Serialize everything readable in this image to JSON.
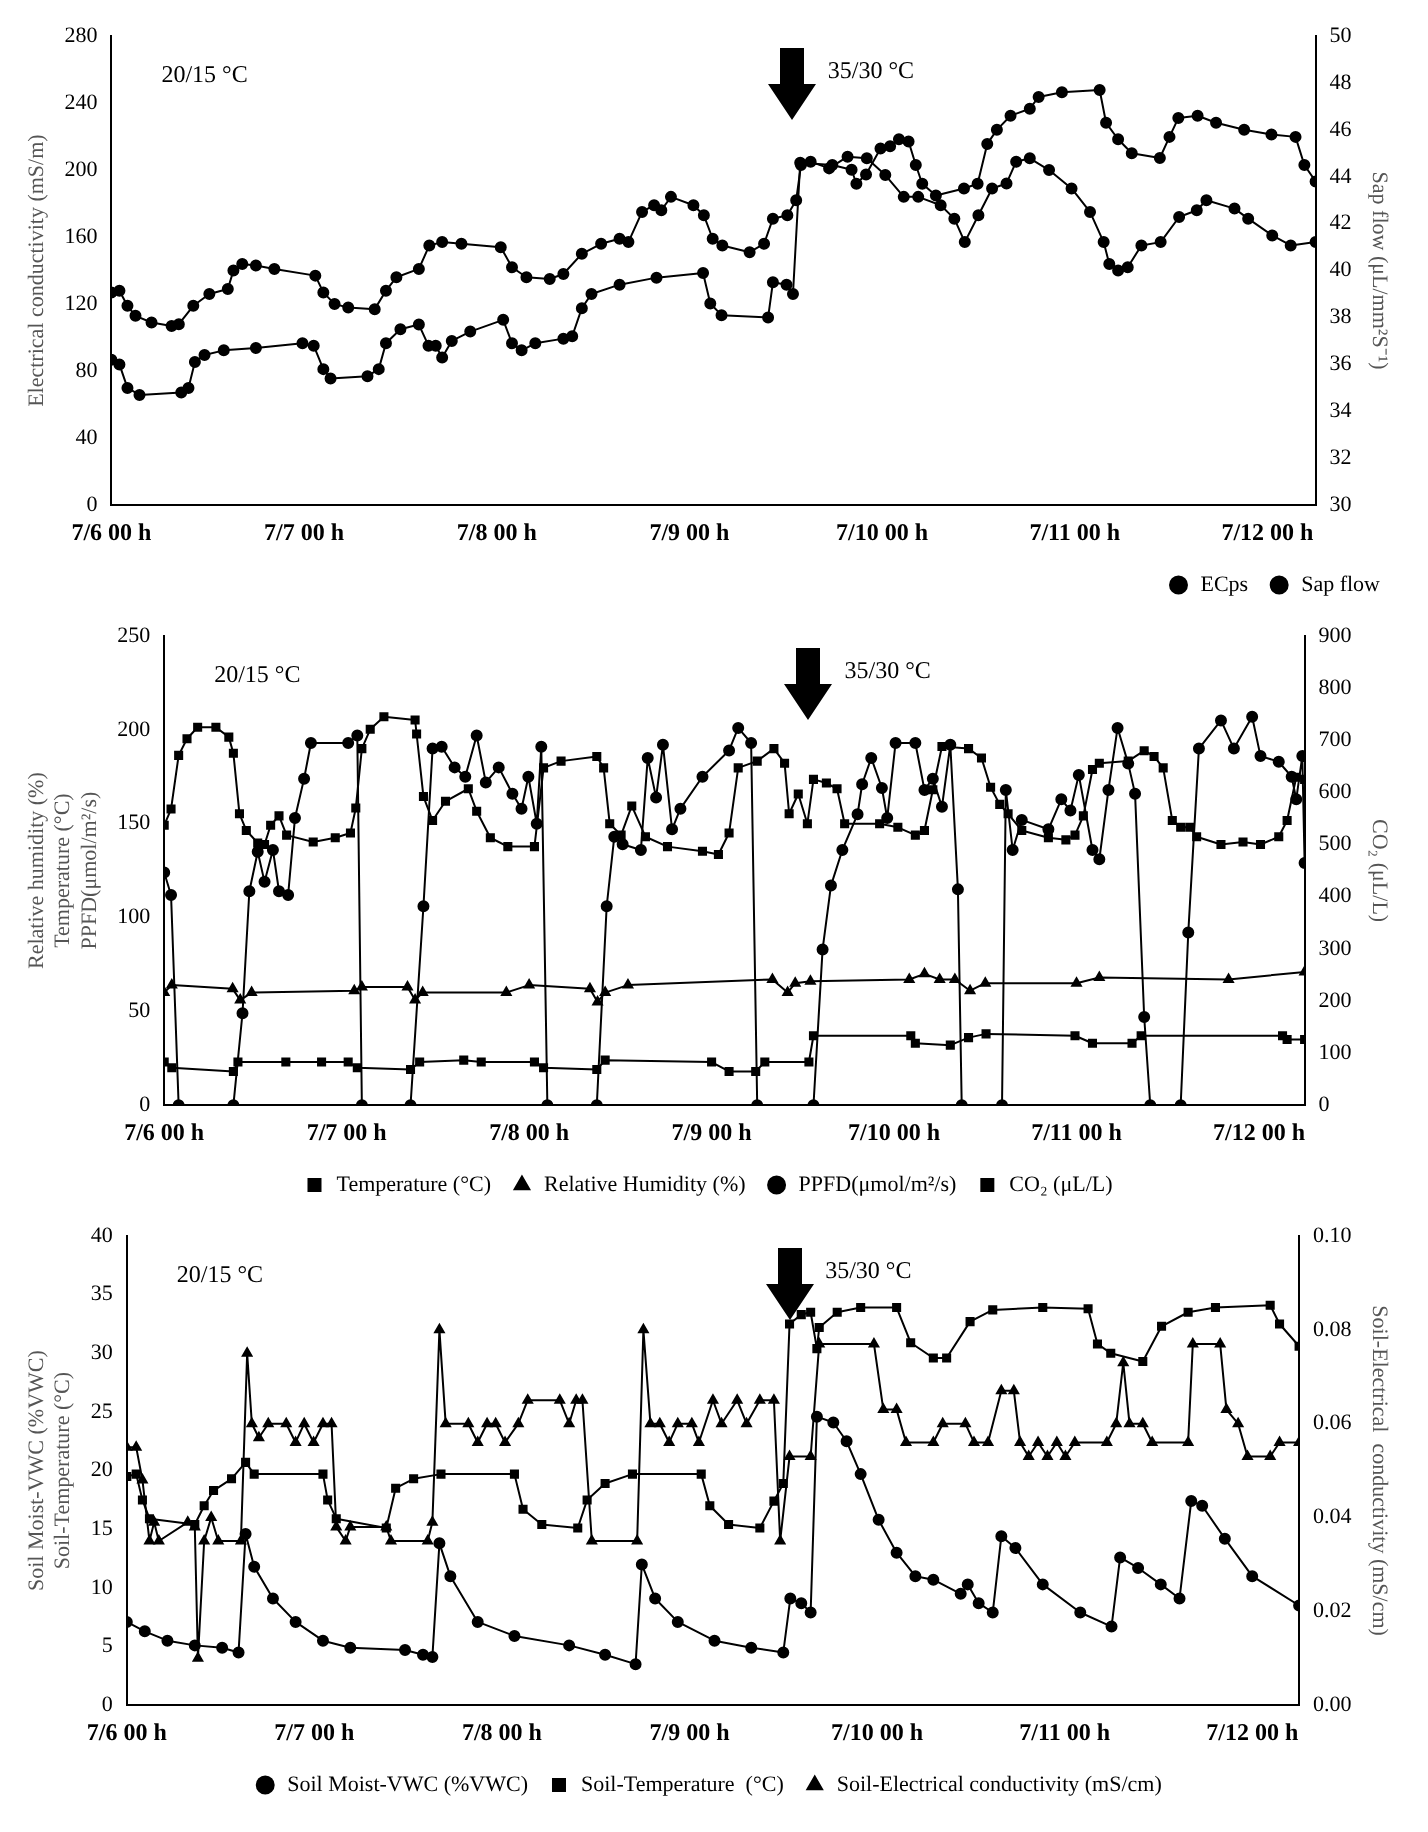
{
  "chart_data": [
    {
      "type": "line",
      "ylabel": "Electrical conductivity (mS/m)",
      "y2label": "Sap flow (μL/mm²S⁻¹)",
      "xlim": [
        "--07-06T00:00",
        "--07-12T06:00"
      ],
      "xticks": [
        {
          "value": "--07-06T00:00",
          "label": "7/6 00 h"
        },
        {
          "value": "--07-07T00:00",
          "label": "7/7 00 h"
        },
        {
          "value": "--07-08T00:00",
          "label": "7/8 00 h"
        },
        {
          "value": "--07-09T00:00",
          "label": "7/9 00 h"
        },
        {
          "value": "--07-10T00:00",
          "label": "7/10 00 h"
        },
        {
          "value": "--07-11T00:00",
          "label": "7/11 00 h"
        },
        {
          "value": "--07-12T00:00",
          "label": "7/12 00 h"
        }
      ],
      "ylim": [
        0,
        280
      ],
      "yticks": [
        0,
        40,
        80,
        120,
        160,
        200,
        240,
        280
      ],
      "y2lim": [
        30,
        50
      ],
      "y2ticks": [
        30,
        32,
        34,
        36,
        38,
        40,
        42,
        44,
        46,
        48,
        50
      ],
      "grid": false,
      "legend": "bottom right",
      "annotations": [
        "20/15 °C",
        "35/30 °C"
      ],
      "series": [
        {
          "name": "ECps",
          "color": "#000000",
          "marker": "circle",
          "x": [
            "--07-06T00:00",
            "--07-06T01:00",
            "--07-06T02:00",
            "--07-06T03:00",
            "--07-06T05:00",
            "--07-06T07:30",
            "--07-06T08:24",
            "--07-06T10:12",
            "--07-06T12:12",
            "--07-06T14:30",
            "--07-06T15:12",
            "--07-06T16:18",
            "--07-06T18:00",
            "--07-06T20:18",
            "--07-07T01:24",
            "--07-07T02:24",
            "--07-07T03:48",
            "--07-07T05:30",
            "--07-07T08:48",
            "--07-07T10:12",
            "--07-07T11:30",
            "--07-07T14:18",
            "--07-07T15:36",
            "--07-07T17:12",
            "--07-07T19:36",
            "--07-08T00:30",
            "--07-08T01:54",
            "--07-08T03:42",
            "--07-08T06:36",
            "--07-08T08:18",
            "--07-08T10:36",
            "--07-08T13:00",
            "--07-08T15:18",
            "--07-08T16:24",
            "--07-08T18:06",
            "--07-08T19:36",
            "--07-08T20:30",
            "--07-08T21:42",
            "--07-09T00:30",
            "--07-09T01:48",
            "--07-09T02:54",
            "--07-09T04:06",
            "--07-09T07:30",
            "--07-09T09:18",
            "--07-09T10:24",
            "--07-09T12:12",
            "--07-09T13:18",
            "--07-09T13:54",
            "--07-09T15:06",
            "--07-09T17:24",
            "--07-09T19:42",
            "--07-09T22:06",
            "--07-10T00:24",
            "--07-10T02:42",
            "--07-10T04:30",
            "--07-10T07:18",
            "--07-10T09:00",
            "--07-10T10:18",
            "--07-10T12:00",
            "--07-10T13:42",
            "--07-10T15:30",
            "--07-10T16:42",
            "--07-10T18:24",
            "--07-10T20:48",
            "--07-10T23:36",
            "--07-11T01:54",
            "--07-11T03:36",
            "--07-11T04:18",
            "--07-11T05:24",
            "--07-11T06:36",
            "--07-11T08:18",
            "--07-11T10:42",
            "--07-11T13:00",
            "--07-11T15:12",
            "--07-11T16:24",
            "--07-11T19:54",
            "--07-11T21:36",
            "--07-12T00:36",
            "--07-12T02:54",
            "--07-12T06:00"
          ],
          "values": [
            127,
            128,
            119,
            113,
            109,
            107,
            108,
            119,
            126,
            129,
            140,
            144,
            143,
            141,
            137,
            127,
            120,
            118,
            117,
            128,
            136,
            141,
            155,
            157,
            156,
            154,
            142,
            136,
            135,
            138,
            150,
            156,
            159,
            157,
            175,
            179,
            176,
            184,
            179,
            173,
            159,
            155,
            151,
            156,
            171,
            173,
            182,
            203,
            205,
            201,
            208,
            207,
            197,
            184,
            184,
            179,
            171,
            157,
            173,
            189,
            192,
            205,
            207,
            200,
            189,
            175,
            157,
            144,
            140,
            142,
            155,
            157,
            172,
            176,
            182,
            177,
            171,
            161,
            155,
            157
          ]
        },
        {
          "name": "Sap flow",
          "color": "#000000",
          "marker": "circle",
          "axis": "y2",
          "x": [
            "--07-06T00:00",
            "--07-06T01:00",
            "--07-06T02:00",
            "--07-06T03:30",
            "--07-06T08:42",
            "--07-06T09:36",
            "--07-06T10:24",
            "--07-06T11:36",
            "--07-06T14:00",
            "--07-06T18:00",
            "--07-06T23:48",
            "--07-07T01:12",
            "--07-07T02:24",
            "--07-07T03:18",
            "--07-07T07:54",
            "--07-07T09:18",
            "--07-07T10:12",
            "--07-07T12:00",
            "--07-07T14:18",
            "--07-07T15:30",
            "--07-07T16:24",
            "--07-07T17:12",
            "--07-07T18:24",
            "--07-07T20:42",
            "--07-08T00:48",
            "--07-08T01:54",
            "--07-08T03:06",
            "--07-08T04:48",
            "--07-08T08:18",
            "--07-08T09:24",
            "--07-08T10:36",
            "--07-08T11:48",
            "--07-08T15:18",
            "--07-08T19:54",
            "--07-09T01:42",
            "--07-09T02:36",
            "--07-09T04:00",
            "--07-09T09:48",
            "--07-09T10:24",
            "--07-09T12:06",
            "--07-09T12:54",
            "--07-09T13:48",
            "--07-09T17:48",
            "--07-09T20:12",
            "--07-09T20:48",
            "--07-09T22:00",
            "--07-09T23:48",
            "--07-10T01:00",
            "--07-10T02:06",
            "--07-10T03:18",
            "--07-10T04:12",
            "--07-10T05:00",
            "--07-10T06:42",
            "--07-10T10:12",
            "--07-10T11:54",
            "--07-10T13:06",
            "--07-10T14:18",
            "--07-10T16:00",
            "--07-10T18:24",
            "--07-10T19:30",
            "--07-10T22:24",
            "--07-11T03:06",
            "--07-11T03:54",
            "--07-11T05:24",
            "--07-11T07:06",
            "--07-11T10:36",
            "--07-11T11:48",
            "--07-11T12:54",
            "--07-11T15:18",
            "--07-11T17:36",
            "--07-11T21:06",
            "--07-12T00:30",
            "--07-12T03:30",
            "--07-12T04:36",
            "--07-12T06:00"
          ],
          "values": [
            36.2,
            36,
            35,
            34.7,
            34.8,
            35,
            36.1,
            36.4,
            36.6,
            36.7,
            36.9,
            36.8,
            35.8,
            35.4,
            35.5,
            35.8,
            36.9,
            37.5,
            37.7,
            36.8,
            36.8,
            36.3,
            37,
            37.4,
            37.9,
            36.9,
            36.6,
            36.9,
            37.1,
            37.2,
            38.4,
            39,
            39.4,
            39.7,
            39.9,
            38.6,
            38.1,
            38,
            39.5,
            39.4,
            39,
            44.6,
            44.5,
            44.3,
            43.7,
            44.1,
            45.2,
            45.3,
            45.6,
            45.5,
            44.5,
            43.7,
            43.2,
            43.5,
            43.7,
            45.4,
            46,
            46.6,
            46.9,
            47.4,
            47.6,
            47.7,
            46.3,
            45.6,
            45,
            44.8,
            45.7,
            46.5,
            46.6,
            46.3,
            46,
            45.8,
            45.7,
            44.5,
            43.8
          ]
        }
      ]
    },
    {
      "type": "line",
      "ylabel": "Relative humidity (%)\nTemperature (°C)\nPPFD(μmol/m²/s)",
      "y2label": "CO₂ (μL/L)",
      "xlim": [
        "--07-06T00:00",
        "--07-12T06:00"
      ],
      "xticks": [
        {
          "value": "--07-06T00:00",
          "label": "7/6 00 h"
        },
        {
          "value": "--07-07T00:00",
          "label": "7/7 00 h"
        },
        {
          "value": "--07-08T00:00",
          "label": "7/8 00 h"
        },
        {
          "value": "--07-09T00:00",
          "label": "7/9 00 h"
        },
        {
          "value": "--07-10T00:00",
          "label": "7/10 00 h"
        },
        {
          "value": "--07-11T00:00",
          "label": "7/11 00 h"
        },
        {
          "value": "--07-12T00:00",
          "label": "7/12 00 h"
        }
      ],
      "ylim": [
        0,
        250
      ],
      "yticks": [
        0,
        50,
        100,
        150,
        200,
        250
      ],
      "y2lim": [
        0,
        900
      ],
      "y2ticks": [
        0,
        100,
        200,
        300,
        400,
        500,
        600,
        700,
        800,
        900
      ],
      "grid": false,
      "legend": "bottom",
      "annotations": [
        "20/15 °C",
        "35/30 °C"
      ],
      "series": [
        {
          "name": "Temperature (°C)",
          "color": "#000000",
          "marker": "square",
          "x": [
            "--07-06T00:00",
            "--07-06T01:00",
            "--07-06T09:06",
            "--07-06T09:42",
            "--07-06T16:00",
            "--07-06T20:42",
            "--07-07T00:12",
            "--07-07T01:24",
            "--07-07T08:24",
            "--07-07T09:36",
            "--07-07T15:24",
            "--07-07T17:42",
            "--07-08T00:42",
            "--07-08T01:54",
            "--07-08T08:54",
            "--07-08T10:00",
            "--07-09T00:00",
            "--07-09T02:18",
            "--07-09T05:48",
            "--07-09T07:00",
            "--07-09T12:48",
            "--07-09T13:24",
            "--07-10T02:12",
            "--07-10T02:48",
            "--07-10T07:24",
            "--07-10T09:48",
            "--07-10T12:06",
            "--07-10T23:48",
            "--07-11T02:06",
            "--07-11T07:18",
            "--07-11T08:30",
            "--07-12T03:06",
            "--07-12T03:42",
            "--07-12T06:00"
          ],
          "values": [
            23,
            20,
            18,
            23,
            23,
            23,
            23,
            20,
            19,
            23,
            24,
            23,
            23,
            20,
            19,
            24,
            23,
            18,
            18,
            23,
            23,
            37,
            37,
            33,
            32,
            36,
            38,
            37,
            33,
            33,
            37,
            37,
            35,
            35
          ]
        },
        {
          "name": "Relative Humidity (%)",
          "color": "#000000",
          "marker": "triangle",
          "x": [
            "--07-06T00:00",
            "--07-06T01:00",
            "--07-06T09:00",
            "--07-06T10:00",
            "--07-06T11:30",
            "--07-07T01:00",
            "--07-07T02:00",
            "--07-07T08:00",
            "--07-07T09:00",
            "--07-07T10:00",
            "--07-07T21:00",
            "--07-08T00:00",
            "--07-08T08:00",
            "--07-08T09:00",
            "--07-08T10:00",
            "--07-08T13:00",
            "--07-09T08:00",
            "--07-09T10:00",
            "--07-09T11:00",
            "--07-09T13:00",
            "--07-10T02:00",
            "--07-10T04:00",
            "--07-10T06:00",
            "--07-10T08:00",
            "--07-10T10:00",
            "--07-10T12:00",
            "--07-11T00:00",
            "--07-11T03:00",
            "--07-11T20:00",
            "--07-12T06:00"
          ],
          "values": [
            60,
            64,
            62,
            56,
            60,
            61,
            63,
            63,
            56,
            60,
            60,
            64,
            62,
            55,
            60,
            64,
            67,
            60,
            65,
            66,
            67,
            70,
            67,
            67,
            61,
            65,
            65,
            68,
            67,
            71
          ]
        },
        {
          "name": "PPFD(μmol/m²/s)",
          "color": "#000000",
          "marker": "circle",
          "x": [
            "--07-06T00:00",
            "--07-06T00:54",
            "--07-06T01:54",
            "--07-06T09:06",
            "--07-06T10:18",
            "--07-06T11:12",
            "--07-06T12:18",
            "--07-06T13:12",
            "--07-06T14:18",
            "--07-06T15:06",
            "--07-06T16:18",
            "--07-06T17:12",
            "--07-06T18:24",
            "--07-06T19:18",
            "--07-07T00:12",
            "--07-07T01:24",
            "--07-07T02:00",
            "--07-07T08:24",
            "--07-07T10:06",
            "--07-07T11:18",
            "--07-07T12:30",
            "--07-07T14:12",
            "--07-07T15:36",
            "--07-07T17:06",
            "--07-07T18:18",
            "--07-07T20:00",
            "--07-07T21:48",
            "--07-07T23:00",
            "--07-07T23:54",
            "--07-08T01:00",
            "--07-08T01:36",
            "--07-08T02:24",
            "--07-08T08:54",
            "--07-08T10:12",
            "--07-08T11:12",
            "--07-08T12:18",
            "--07-08T14:42",
            "--07-08T15:36",
            "--07-08T16:42",
            "--07-08T17:36",
            "--07-08T18:48",
            "--07-08T19:54",
            "--07-08T22:48",
            "--07-09T02:18",
            "--07-09T03:30",
            "--07-09T05:12",
            "--07-09T06:00",
            "--07-09T13:24",
            "--07-09T14:36",
            "--07-09T15:42",
            "--07-09T17:12",
            "--07-09T19:12",
            "--07-09T19:48",
            "--07-09T21:00",
            "--07-09T22:24",
            "--07-09T23:06",
            "--07-10T00:12",
            "--07-10T02:48",
            "--07-10T04:00",
            "--07-10T05:06",
            "--07-10T06:18",
            "--07-10T07:24",
            "--07-10T08:24",
            "--07-10T08:54",
            "--07-10T14:12",
            "--07-10T14:42",
            "--07-10T15:36",
            "--07-10T16:48",
            "--07-10T20:18",
            "--07-10T22:00",
            "--07-10T23:12",
            "--07-11T00:18",
            "--07-11T02:06",
            "--07-11T03:00",
            "--07-11T04:12",
            "--07-11T05:24",
            "--07-11T06:48",
            "--07-11T07:42",
            "--07-11T08:54",
            "--07-11T09:42",
            "--07-11T13:42",
            "--07-11T14:42",
            "--07-11T16:06",
            "--07-11T19:00",
            "--07-11T20:42",
            "--07-11T23:06",
            "--07-12T00:12",
            "--07-12T02:36",
            "--07-12T04:18",
            "--07-12T04:54",
            "--07-12T05:42",
            "--07-12T06:00"
          ],
          "values": [
            124,
            112,
            0,
            0,
            49,
            114,
            135,
            119,
            136,
            114,
            112,
            153,
            174,
            193,
            193,
            197,
            0,
            0,
            106,
            190,
            191,
            180,
            175,
            197,
            172,
            180,
            166,
            158,
            175,
            150,
            191,
            0,
            0,
            106,
            143,
            139,
            136,
            185,
            164,
            192,
            147,
            158,
            175,
            189,
            201,
            193,
            0,
            0,
            83,
            117,
            136,
            155,
            171,
            185,
            169,
            153,
            193,
            193,
            168,
            174,
            159,
            192,
            115,
            0,
            0,
            168,
            136,
            152,
            147,
            163,
            157,
            176,
            136,
            131,
            168,
            201,
            182,
            166,
            47,
            0,
            0,
            92,
            190,
            205,
            190,
            207,
            186,
            183,
            175,
            163,
            186,
            129
          ]
        },
        {
          "name": "CO₂ (μL/L)",
          "color": "#000000",
          "marker": "square",
          "axis": "y2",
          "x": [
            "--07-06T00:00",
            "--07-06T00:54",
            "--07-06T01:54",
            "--07-06T03:00",
            "--07-06T04:24",
            "--07-06T06:48",
            "--07-06T08:30",
            "--07-06T09:06",
            "--07-06T09:54",
            "--07-06T10:48",
            "--07-06T12:18",
            "--07-06T13:12",
            "--07-06T14:00",
            "--07-06T15:06",
            "--07-06T16:06",
            "--07-06T19:36",
            "--07-06T22:30",
            "--07-07T00:30",
            "--07-07T01:12",
            "--07-07T02:00",
            "--07-07T03:06",
            "--07-07T04:54",
            "--07-07T09:00",
            "--07-07T09:12",
            "--07-07T10:06",
            "--07-07T11:18",
            "--07-07T13:00",
            "--07-07T16:00",
            "--07-07T17:06",
            "--07-07T18:54",
            "--07-07T21:12",
            "--07-08T00:42",
            "--07-08T01:54",
            "--07-08T04:12",
            "--07-08T08:54",
            "--07-08T09:48",
            "--07-08T10:36",
            "--07-08T12:06",
            "--07-08T13:30",
            "--07-08T15:18",
            "--07-08T18:12",
            "--07-08T22:48",
            "--07-09T00:54",
            "--07-09T02:18",
            "--07-09T03:30",
            "--07-09T06:00",
            "--07-09T08:12",
            "--07-09T09:36",
            "--07-09T10:12",
            "--07-09T11:24",
            "--07-09T12:36",
            "--07-09T13:24",
            "--07-09T15:06",
            "--07-09T16:30",
            "--07-09T17:30",
            "--07-09T22:06",
            "--07-10T00:30",
            "--07-10T02:48",
            "--07-10T04:00",
            "--07-10T05:06",
            "--07-10T06:18",
            "--07-10T09:48",
            "--07-10T11:30",
            "--07-10T12:42",
            "--07-10T13:54",
            "--07-10T15:00",
            "--07-10T16:48",
            "--07-10T20:18",
            "--07-10T22:36",
            "--07-10T23:48",
            "--07-11T00:54",
            "--07-11T02:06",
            "--07-11T03:00",
            "--07-11T06:48",
            "--07-11T08:54",
            "--07-11T10:12",
            "--07-11T11:24",
            "--07-11T12:36",
            "--07-11T13:42",
            "--07-11T14:54",
            "--07-11T15:48",
            "--07-11T19:00",
            "--07-11T21:54",
            "--07-12T00:12",
            "--07-12T02:36",
            "--07-12T03:42",
            "--07-12T04:54",
            "--07-12T06:00"
          ],
          "values": [
            537,
            568,
            671,
            703,
            725,
            725,
            706,
            675,
            559,
            527,
            503,
            500,
            537,
            555,
            518,
            505,
            513,
            522,
            570,
            684,
            721,
            745,
            739,
            712,
            592,
            546,
            583,
            607,
            564,
            513,
            496,
            496,
            647,
            660,
            669,
            647,
            540,
            518,
            574,
            515,
            496,
            487,
            481,
            522,
            647,
            660,
            684,
            656,
            559,
            597,
            540,
            625,
            618,
            607,
            540,
            540,
            533,
            518,
            527,
            605,
            688,
            684,
            666,
            610,
            577,
            559,
            527,
            513,
            509,
            518,
            555,
            644,
            656,
            660,
            680,
            669,
            647,
            546,
            533,
            533,
            515,
            500,
            505,
            500,
            515,
            546,
            629,
            625
          ]
        }
      ]
    },
    {
      "type": "line",
      "ylabel": "Soil Moist-VWC (%VWC)\nSoil-Temperature (°C)",
      "y2label": "Soil-Electrical  conductivity (mS/cm)",
      "xlim": [
        "--07-06T00:00",
        "--07-12T06:00"
      ],
      "xticks": [
        {
          "value": "--07-06T00:00",
          "label": "7/6 00 h"
        },
        {
          "value": "--07-07T00:00",
          "label": "7/7 00 h"
        },
        {
          "value": "--07-08T00:00",
          "label": "7/8 00 h"
        },
        {
          "value": "--07-09T00:00",
          "label": "7/9 00 h"
        },
        {
          "value": "--07-10T00:00",
          "label": "7/10 00 h"
        },
        {
          "value": "--07-11T00:00",
          "label": "7/11 00 h"
        },
        {
          "value": "--07-12T00:00",
          "label": "7/12 00 h"
        }
      ],
      "ylim": [
        0,
        40
      ],
      "yticks": [
        0,
        5,
        10,
        15,
        20,
        25,
        30,
        35,
        40
      ],
      "y2lim": [
        0,
        0.1
      ],
      "y2ticks": [
        {
          "value": 0,
          "label": "0.00"
        },
        {
          "value": 0.02,
          "label": "0.02"
        },
        {
          "value": 0.04,
          "label": "0.04"
        },
        {
          "value": 0.06,
          "label": "0.06"
        },
        {
          "value": 0.08,
          "label": "0.08"
        },
        {
          "value": 0.1,
          "label": "0.10"
        }
      ],
      "grid": false,
      "legend": "bottom",
      "annotations": [
        "20/15 °C",
        "35/30 °C"
      ],
      "series": [
        {
          "name": "Soil Moist-VWC (%VWC)",
          "color": "#000000",
          "marker": "circle",
          "x": [
            "--07-06T00:00",
            "--07-06T02:18",
            "--07-06T05:12",
            "--07-06T08:42",
            "--07-06T12:12",
            "--07-06T14:18",
            "--07-06T15:12",
            "--07-06T16:18",
            "--07-06T18:42",
            "--07-06T21:36",
            "--07-07T01:06",
            "--07-07T04:36",
            "--07-07T11:36",
            "--07-07T13:54",
            "--07-07T15:06",
            "--07-07T16:00",
            "--07-07T17:24",
            "--07-07T20:54",
            "--07-08T01:36",
            "--07-08T08:36",
            "--07-08T13:12",
            "--07-08T17:06",
            "--07-08T17:54",
            "--07-08T19:36",
            "--07-08T22:30",
            "--07-09T03:12",
            "--07-09T07:54",
            "--07-09T12:00",
            "--07-09T12:54",
            "--07-09T14:18",
            "--07-09T15:30",
            "--07-09T16:18",
            "--07-09T18:24",
            "--07-09T20:06",
            "--07-09T21:54",
            "--07-10T00:12",
            "--07-10T02:30",
            "--07-10T04:54",
            "--07-10T07:12",
            "--07-10T10:42",
            "--07-10T11:36",
            "--07-10T13:00",
            "--07-10T14:48",
            "--07-10T15:54",
            "--07-10T17:42",
            "--07-10T21:12",
            "--07-11T02:00",
            "--07-11T06:00",
            "--07-11T07:06",
            "--07-11T09:24",
            "--07-11T12:18",
            "--07-11T14:42",
            "--07-11T16:12",
            "--07-11T17:36",
            "--07-11T20:30",
            "--07-12T00:00",
            "--07-12T06:00"
          ],
          "values": [
            7.1,
            6.3,
            5.5,
            5.1,
            4.9,
            4.5,
            14.6,
            11.8,
            9.1,
            7.1,
            5.5,
            4.9,
            4.7,
            4.3,
            4.1,
            13.8,
            11,
            7.1,
            5.9,
            5.1,
            4.3,
            3.5,
            12,
            9.1,
            7.1,
            5.5,
            4.9,
            4.5,
            9.1,
            8.7,
            7.9,
            24.6,
            24.1,
            22.5,
            19.7,
            15.8,
            13,
            11,
            10.7,
            9.5,
            10.3,
            8.7,
            7.9,
            14.4,
            13.4,
            10.3,
            7.9,
            6.7,
            12.6,
            11.7,
            10.3,
            9.1,
            17.4,
            17,
            14.2,
            11,
            8.5
          ]
        },
        {
          "name": "Soil-Temperature  (°C)",
          "color": "#000000",
          "marker": "square",
          "x": [
            "--07-06T00:00",
            "--07-06T01:12",
            "--07-06T02:00",
            "--07-06T02:54",
            "--07-06T08:42",
            "--07-06T09:54",
            "--07-06T11:06",
            "--07-06T13:24",
            "--07-06T15:12",
            "--07-06T16:18",
            "--07-07T01:06",
            "--07-07T01:42",
            "--07-07T02:48",
            "--07-07T09:12",
            "--07-07T10:24",
            "--07-07T12:42",
            "--07-07T16:12",
            "--07-08T01:36",
            "--07-08T02:42",
            "--07-08T05:06",
            "--07-08T09:42",
            "--07-08T10:54",
            "--07-08T13:12",
            "--07-08T16:42",
            "--07-09T01:30",
            "--07-09T02:36",
            "--07-09T05:00",
            "--07-09T09:00",
            "--07-09T10:48",
            "--07-09T12:00",
            "--07-09T12:48",
            "--07-09T14:18",
            "--07-09T15:30",
            "--07-09T16:18",
            "--07-09T16:36",
            "--07-09T18:54",
            "--07-09T21:54",
            "--07-10T02:30",
            "--07-10T04:18",
            "--07-10T07:12",
            "--07-10T08:54",
            "--07-10T11:54",
            "--07-10T14:48",
            "--07-10T21:12",
            "--07-11T03:00",
            "--07-11T04:12",
            "--07-11T05:54",
            "--07-11T10:00",
            "--07-11T12:24",
            "--07-11T15:48",
            "--07-11T19:18",
            "--07-12T02:18",
            "--07-12T03:30",
            "--07-12T06:00"
          ],
          "values": [
            19.5,
            19.7,
            17.5,
            15.9,
            15.4,
            17,
            18.3,
            19.3,
            20.7,
            19.7,
            19.7,
            17.5,
            15.9,
            15.1,
            18.5,
            19.3,
            19.7,
            19.7,
            16.7,
            15.4,
            15.1,
            17.5,
            18.9,
            19.7,
            19.7,
            17,
            15.4,
            15.1,
            17.4,
            18.9,
            32.5,
            33.3,
            33.5,
            30.4,
            32.2,
            33.5,
            33.9,
            33.9,
            30.9,
            29.6,
            29.6,
            32.7,
            33.7,
            33.9,
            33.8,
            30.8,
            30,
            29.3,
            32.3,
            33.5,
            33.9,
            34.1,
            32.5,
            30.6
          ]
        },
        {
          "name": "Soil-Electrical conductivity (mS/cm)",
          "color": "#000000",
          "marker": "triangle",
          "axis": "y2",
          "x": [
            "--07-06T00:00",
            "--07-06T01:12",
            "--07-06T02:00",
            "--07-06T02:54",
            "--07-06T03:30",
            "--07-06T04:06",
            "--07-06T07:48",
            "--07-06T08:42",
            "--07-06T09:06",
            "--07-06T09:54",
            "--07-06T10:48",
            "--07-06T11:42",
            "--07-06T14:36",
            "--07-06T15:24",
            "--07-06T16:00",
            "--07-06T16:54",
            "--07-06T18:06",
            "--07-06T20:24",
            "--07-06T21:36",
            "--07-06T22:42",
            "--07-06T23:54",
            "--07-07T01:06",
            "--07-07T02:12",
            "--07-07T02:48",
            "--07-07T04:00",
            "--07-07T04:36",
            "--07-07T09:12",
            "--07-07T09:48",
            "--07-07T14:30",
            "--07-07T15:06",
            "--07-07T16:00",
            "--07-07T16:48",
            "--07-07T19:42",
            "--07-07T20:54",
            "--07-07T22:06",
            "--07-07T23:12",
            "--07-08T00:24",
            "--07-08T02:06",
            "--07-08T03:18",
            "--07-08T07:24",
            "--07-08T08:36",
            "--07-08T09:30",
            "--07-08T10:18",
            "--07-08T11:30",
            "--07-08T17:18",
            "--07-08T18:06",
            "--07-08T19:00",
            "--07-08T20:12",
            "--07-08T21:24",
            "--07-08T22:30",
            "--07-09T00:18",
            "--07-09T01:12",
            "--07-09T03:00",
            "--07-09T04:06",
            "--07-09T06:06",
            "--07-09T07:18",
            "--07-09T09:00",
            "--07-09T10:48",
            "--07-09T11:36",
            "--07-09T12:48",
            "--07-09T15:30",
            "--07-09T16:36",
            "--07-09T23:36",
            "--07-10T00:48",
            "--07-10T02:30",
            "--07-10T03:42",
            "--07-10T07:12",
            "--07-10T08:24",
            "--07-10T11:18",
            "--07-10T12:24",
            "--07-10T14:12",
            "--07-10T15:54",
            "--07-10T17:30",
            "--07-10T18:18",
            "--07-10T19:24",
            "--07-10T20:36",
            "--07-10T21:48",
            "--07-10T23:00",
            "--07-11T00:06",
            "--07-11T01:18",
            "--07-11T05:24",
            "--07-11T06:36",
            "--07-11T07:30",
            "--07-11T08:18",
            "--07-11T10:00",
            "--07-11T11:12",
            "--07-11T15:48",
            "--07-11T16:24",
            "--07-11T19:54",
            "--07-11T20:42",
            "--07-11T22:12",
            "--07-11T23:24",
            "--07-12T02:18",
            "--07-12T03:30",
            "--07-12T06:00"
          ],
          "values": [
            0.055,
            0.055,
            0.048,
            0.035,
            0.039,
            0.035,
            0.039,
            0.038,
            0.01,
            0.035,
            0.04,
            0.035,
            0.035,
            0.075,
            0.06,
            0.057,
            0.06,
            0.06,
            0.056,
            0.06,
            0.056,
            0.06,
            0.06,
            0.038,
            0.035,
            0.038,
            0.038,
            0.035,
            0.035,
            0.039,
            0.08,
            0.06,
            0.06,
            0.056,
            0.06,
            0.06,
            0.056,
            0.06,
            0.065,
            0.065,
            0.06,
            0.065,
            0.065,
            0.035,
            0.035,
            0.08,
            0.06,
            0.06,
            0.056,
            0.06,
            0.06,
            0.056,
            0.065,
            0.06,
            0.065,
            0.06,
            0.065,
            0.065,
            0.035,
            0.053,
            0.053,
            0.077,
            0.077,
            0.063,
            0.063,
            0.056,
            0.056,
            0.06,
            0.06,
            0.056,
            0.056,
            0.067,
            0.067,
            0.056,
            0.053,
            0.056,
            0.053,
            0.056,
            0.053,
            0.056,
            0.056,
            0.06,
            0.073,
            0.06,
            0.06,
            0.056,
            0.056,
            0.077,
            0.077,
            0.063,
            0.06,
            0.053,
            0.053,
            0.056,
            0.056
          ]
        }
      ]
    }
  ]
}
